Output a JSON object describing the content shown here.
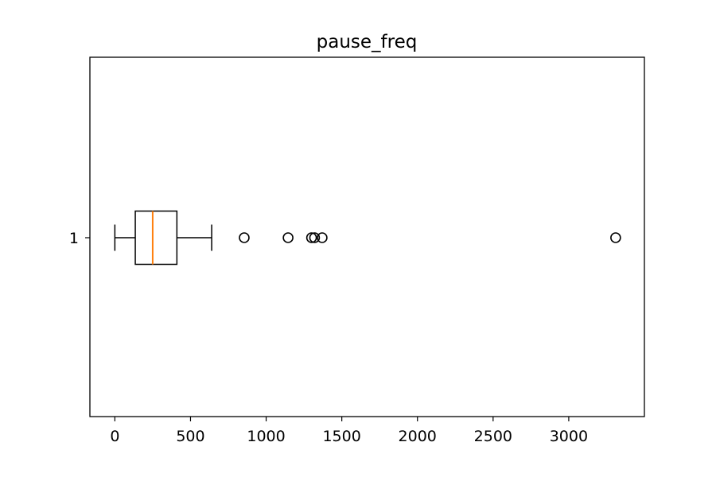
{
  "chart_data": {
    "type": "boxplot",
    "orientation": "horizontal",
    "title": "pause_freq",
    "xlabel": "",
    "ylabel": "",
    "xlim": [
      -165,
      3500
    ],
    "x_ticks": [
      0,
      500,
      1000,
      1500,
      2000,
      2500,
      3000
    ],
    "x_tick_labels": [
      "0",
      "500",
      "1000",
      "1500",
      "2000",
      "2500",
      "3000"
    ],
    "y_ticks": [
      1
    ],
    "y_tick_labels": [
      "1"
    ],
    "grid": false,
    "series": [
      {
        "position": 1,
        "whisker_low": 0,
        "q1": 135,
        "median": 250,
        "q3": 410,
        "whisker_high": 640,
        "outliers": [
          855,
          1145,
          1300,
          1320,
          1370,
          3310
        ]
      }
    ],
    "colors": {
      "box": "#000000",
      "median": "#ff7f0e",
      "outlier_edge": "#000000",
      "axes": "#000000"
    }
  }
}
